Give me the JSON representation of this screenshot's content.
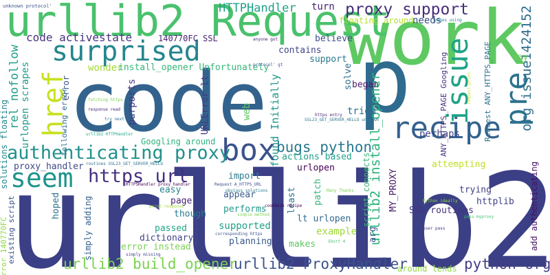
{
  "cloud": {
    "words": [
      {
        "text": "urllib2",
        "color": "#3b3f85"
      },
      {
        "text": "code",
        "color": "#33638d"
      },
      {
        "text": "work",
        "color": "#5ec962"
      },
      {
        "text": "p",
        "color": "#2f6b8e"
      },
      {
        "text": "urllib2 Request",
        "color": "#4ac16d"
      },
      {
        "text": "surprised",
        "color": "#25858e"
      },
      {
        "text": "recipe",
        "color": "#33628d"
      },
      {
        "text": "box",
        "color": "#3b528b"
      },
      {
        "text": "issue",
        "color": "#20a386"
      },
      {
        "text": "pre",
        "color": "#2c728e"
      },
      {
        "text": "href",
        "color": "#c7e020"
      },
      {
        "text": "seem",
        "color": "#1f948c"
      },
      {
        "text": "authenticating proxy",
        "color": "#21918c"
      },
      {
        "text": "https url",
        "color": "#46307e"
      },
      {
        "text": "proxy support",
        "color": "#472d7b"
      },
      {
        "text": "urllib2 build_opener",
        "color": "#7ad151"
      },
      {
        "text": "urllib2 ProxyHandler",
        "color": "#3b528b"
      },
      {
        "text": "python org",
        "color": "#433e85"
      },
      {
        "text": "bugs python",
        "color": "#2a788e"
      },
      {
        "text": "org issue1424152",
        "color": "#2e6e8e"
      },
      {
        "text": "urllib2 install_opener",
        "color": "#2db27d"
      },
      {
        "text": "rel nofollow",
        "color": "#1f9e89"
      },
      {
        "text": "code activestate",
        "color": "#46327e"
      },
      {
        "text": "HTTPHandler",
        "color": "#1fa187"
      },
      {
        "text": "turn",
        "color": "#482071"
      },
      {
        "text": "140770FC SSL",
        "color": "#482173"
      },
      {
        "text": "unknown protocol'",
        "color": "#3b528b"
      },
      {
        "text": "believe",
        "color": "#3d4e8a"
      },
      {
        "text": "contains",
        "color": "#3f4889"
      },
      {
        "text": "support",
        "color": "#2a788e"
      },
      {
        "text": "solve",
        "color": "#2c728e"
      },
      {
        "text": "began",
        "color": "#48186a"
      },
      {
        "text": "wonder",
        "color": "#a5db36"
      },
      {
        "text": "install_opener Unfortunately",
        "color": "#35b779"
      },
      {
        "text": "urlopen scrapes",
        "color": "#1f9a8a"
      },
      {
        "text": "error",
        "color": "#39568c"
      },
      {
        "text": "purports",
        "color": "#443983"
      },
      {
        "text": "URLError lt",
        "color": "#453781"
      },
      {
        "text": "found Initially",
        "color": "#1f968b"
      },
      {
        "text": "tried",
        "color": "#2d708e"
      },
      {
        "text": "web",
        "color": "#5ec962"
      },
      {
        "text": "ANY_HTTPS_PAGE Googling",
        "color": "#46307e"
      },
      {
        "text": "Request ANY_HTTPS_PAGE",
        "color": "#2c728e"
      },
      {
        "text": "needs",
        "color": "#3b528b"
      },
      {
        "text": "floating around",
        "color": "#b5de2b"
      },
      {
        "text": "perhaps",
        "color": "#3f4788"
      },
      {
        "text": "say",
        "color": "#6ccd5a"
      },
      {
        "text": "solutions floating",
        "color": "#23888e"
      },
      {
        "text": "following error",
        "color": "#2f6c8e"
      },
      {
        "text": "Googling around",
        "color": "#2db27d"
      },
      {
        "text": "proxy_handler",
        "color": "#3e4a89"
      },
      {
        "text": "actions based",
        "color": "#1fa088"
      },
      {
        "text": "urlopen",
        "color": "#440154"
      },
      {
        "text": "import",
        "color": "#297b8e"
      },
      {
        "text": "attempting",
        "color": "#c2df23"
      },
      {
        "text": "trying",
        "color": "#414287"
      },
      {
        "text": "httplib",
        "color": "#424086"
      },
      {
        "text": "easy",
        "color": "#26828e"
      },
      {
        "text": "appear",
        "color": "#365c8d"
      },
      {
        "text": "patch",
        "color": "#31b57b"
      },
      {
        "text": "least",
        "color": "#2c728e"
      },
      {
        "text": "script connects",
        "color": "#3bbb75"
      },
      {
        "text": "MY_PROXY",
        "color": "#48186a"
      },
      {
        "text": "SSL routines",
        "color": "#46337f"
      },
      {
        "text": "page",
        "color": "#482576"
      },
      {
        "text": "performs",
        "color": "#1f998a"
      },
      {
        "text": "lt urlopen",
        "color": "#31688e"
      },
      {
        "text": "example",
        "color": "#9fda3a"
      },
      {
        "text": "though",
        "color": "#2a788e"
      },
      {
        "text": "passed",
        "color": "#21a685"
      },
      {
        "text": "supported",
        "color": "#1f9f88"
      },
      {
        "text": "dictionary",
        "color": "#414487"
      },
      {
        "text": "planning",
        "color": "#38588c"
      },
      {
        "text": "makes",
        "color": "#5ec962"
      },
      {
        "text": "arg",
        "color": "#39568c"
      },
      {
        "text": "add authenticating",
        "color": "#471164"
      },
      {
        "text": "hoped",
        "color": "#2c728e"
      },
      {
        "text": "simply adding",
        "color": "#34608d"
      },
      {
        "text": "existing script",
        "color": "#3b528b"
      },
      {
        "text": "error instead",
        "color": "#7ad151"
      },
      {
        "text": "error 140770FC",
        "color": "#8fd744"
      },
      {
        "text": "around lends",
        "color": "#90d743"
      },
      {
        "text": "anyone got",
        "color": "#482475"
      },
      {
        "text": "protocol' gt",
        "color": "#3b528b"
      },
      {
        "text": "pages using",
        "color": "#287d8e"
      },
      {
        "text": "request print",
        "color": "#d2e21b"
      },
      {
        "text": "fetching https",
        "color": "#7ad151"
      },
      {
        "text": "response read",
        "color": "#482878"
      },
      {
        "text": "try next",
        "color": "#2c728e"
      },
      {
        "text": "https entry",
        "color": "#482071"
      },
      {
        "text": "SSL23_GET_SERVER_HELLO unknown",
        "color": "#2c728e"
      },
      {
        "text": "urllib2 HTTPHandler",
        "color": "#22a884"
      },
      {
        "text": "routines SSL23_GET_SERVER_HELLO",
        "color": "#2d708e"
      },
      {
        "text": "HTTPSHandler proxy_handler",
        "color": "#440154"
      },
      {
        "text": "Request A_HTTPS_URL",
        "color": "#3e4c8a"
      },
      {
        "text": "obvious solutions",
        "color": "#2a788e"
      },
      {
        "text": "Many Thanks",
        "color": "#7ad151"
      },
      {
        "text": "myproxy port",
        "color": "#3b528b"
      },
      {
        "text": "Python ideally",
        "color": "#8fd744"
      },
      {
        "text": "print response",
        "color": "#a0da39"
      },
      {
        "text": "simple method",
        "color": "#7ad151"
      },
      {
        "text": "cookbook recipe",
        "color": "#440154"
      },
      {
        "text": "pass myproxy",
        "color": "#44bf70"
      },
      {
        "text": "corresponding https",
        "color": "#3b528b"
      },
      {
        "text": "Short 4",
        "color": "#4ac16d"
      },
      {
        "text": "user pass",
        "color": "#46337f"
      },
      {
        "text": "simply missing",
        "color": "#414487"
      }
    ]
  }
}
